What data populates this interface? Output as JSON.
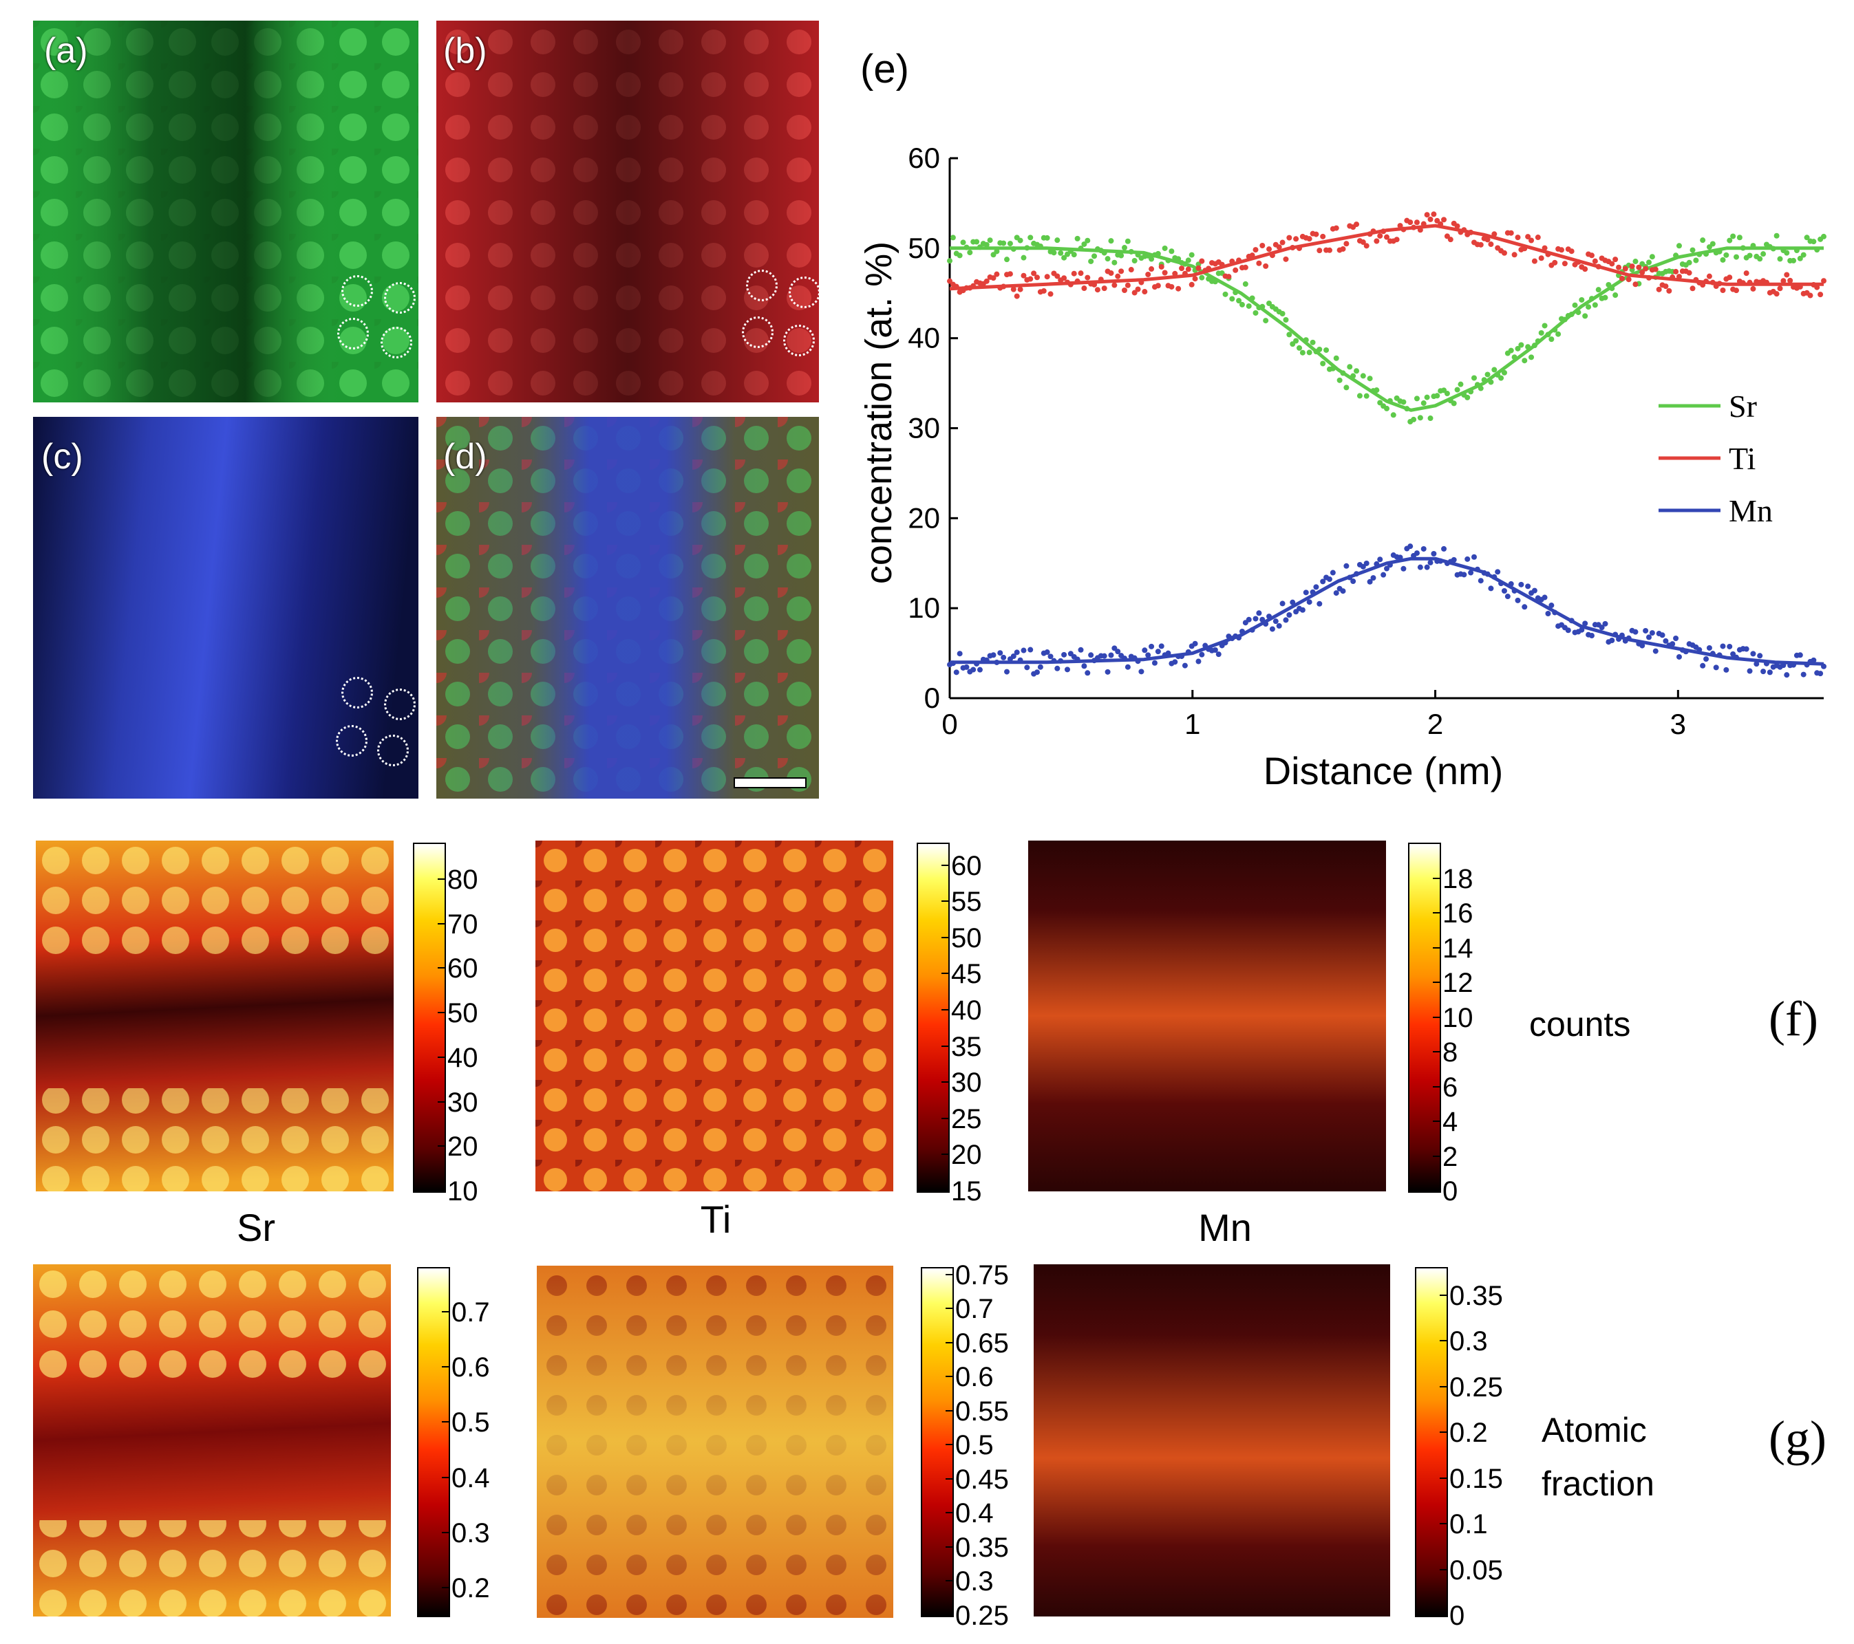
{
  "maps_top": {
    "a": {
      "label": "(a)",
      "element": "Sr",
      "color": "#4fc85a"
    },
    "b": {
      "label": "(b)",
      "element": "Ti",
      "color": "#e23a3a"
    },
    "c": {
      "label": "(c)",
      "element": "Mn",
      "color": "#3b4fd6"
    },
    "d": {
      "label": "(d)",
      "element": "overlay"
    }
  },
  "row_f": {
    "label": "(f)",
    "side_label": "counts"
  },
  "row_g": {
    "label": "(g)",
    "side_label_line1": "Atomic",
    "side_label_line2": "fraction"
  },
  "element_labels": [
    "Sr",
    "Ti",
    "Mn"
  ],
  "colorbars": {
    "f_sr": {
      "ticks": [
        "80",
        "70",
        "60",
        "50",
        "40",
        "30",
        "20",
        "10"
      ],
      "min": 10,
      "max": 88
    },
    "f_ti": {
      "ticks": [
        "60",
        "55",
        "50",
        "45",
        "40",
        "35",
        "30",
        "25",
        "20",
        "15"
      ],
      "min": 15,
      "max": 63
    },
    "f_mn": {
      "ticks": [
        "18",
        "16",
        "14",
        "12",
        "10",
        "8",
        "6",
        "4",
        "2",
        "0"
      ],
      "min": 0,
      "max": 20
    },
    "g_sr": {
      "ticks": [
        "0.7",
        "0.6",
        "0.5",
        "0.4",
        "0.3",
        "0.2"
      ],
      "min": 0.15,
      "max": 0.78
    },
    "g_ti": {
      "ticks": [
        "0.75",
        "0.7",
        "0.65",
        "0.6",
        "0.55",
        "0.5",
        "0.45",
        "0.4",
        "0.35",
        "0.3",
        "0.25"
      ],
      "min": 0.25,
      "max": 0.76
    },
    "g_mn": {
      "ticks": [
        "0.35",
        "0.3",
        "0.25",
        "0.2",
        "0.15",
        "0.1",
        "0.05",
        "0"
      ],
      "min": 0,
      "max": 0.38
    }
  },
  "chart_data": {
    "type": "scatter",
    "panel_label": "(e)",
    "title": "",
    "xlabel": "Distance (nm)",
    "ylabel": "concentration  (at. %)",
    "xlim": [
      0,
      3.6
    ],
    "ylim": [
      0,
      60
    ],
    "x_ticks": [
      "0",
      "1",
      "2",
      "3"
    ],
    "y_ticks": [
      "0",
      "10",
      "20",
      "30",
      "40",
      "50",
      "60"
    ],
    "legend_position": "right",
    "series": [
      {
        "name": "Sr",
        "color": "#5ec94a",
        "x": [
          0,
          0.4,
          0.8,
          1.0,
          1.2,
          1.4,
          1.6,
          1.8,
          1.9,
          2.0,
          2.2,
          2.4,
          2.6,
          2.8,
          3.0,
          3.2,
          3.4,
          3.6
        ],
        "y": [
          50,
          50,
          49.5,
          48,
          45,
          41,
          36.5,
          33,
          32,
          32.5,
          35,
          39,
          43.5,
          47,
          49,
          50,
          50,
          50
        ]
      },
      {
        "name": "Ti",
        "color": "#e2403a",
        "x": [
          0,
          0.4,
          0.8,
          1.0,
          1.2,
          1.4,
          1.6,
          1.8,
          2.0,
          2.2,
          2.4,
          2.6,
          2.8,
          3.0,
          3.2,
          3.4,
          3.6
        ],
        "y": [
          45.5,
          46,
          46.5,
          47,
          48.5,
          50,
          51,
          52,
          52.5,
          51.5,
          50,
          48.5,
          47,
          46.5,
          46,
          46,
          46
        ]
      },
      {
        "name": "Mn",
        "color": "#3346b4",
        "x": [
          0,
          0.4,
          0.8,
          1.0,
          1.2,
          1.4,
          1.6,
          1.8,
          1.9,
          2.0,
          2.2,
          2.4,
          2.6,
          2.8,
          3.0,
          3.2,
          3.4,
          3.6
        ],
        "y": [
          4,
          4,
          4.3,
          5,
          7,
          10,
          13,
          15,
          15.5,
          15.5,
          14,
          11,
          8,
          6.5,
          5.5,
          4.5,
          4,
          3.8
        ]
      }
    ]
  }
}
